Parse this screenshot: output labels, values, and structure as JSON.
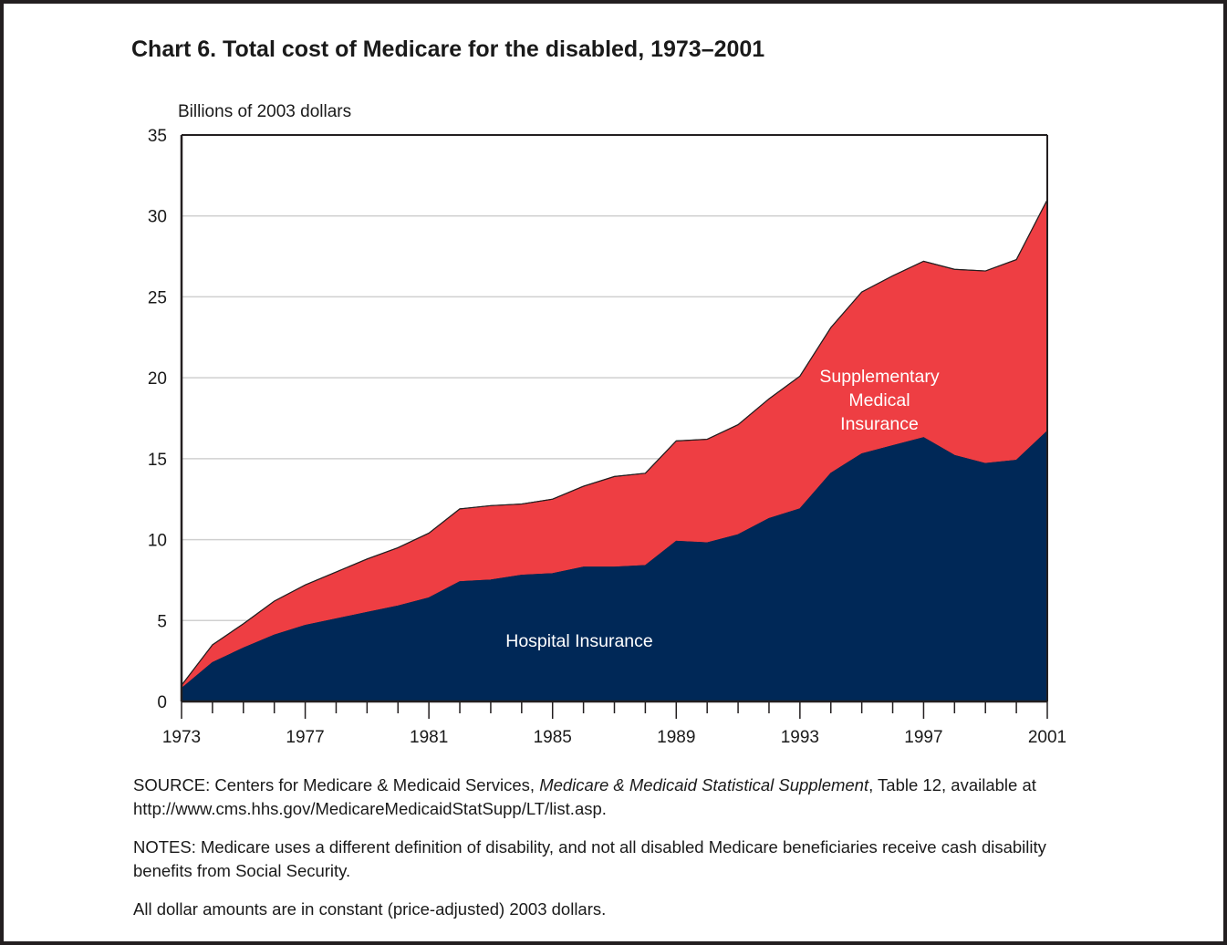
{
  "title": "Chart 6. Total cost of Medicare for the disabled, 1973–2001",
  "notes": {
    "source_prefix": "SOURCE:  Centers for Medicare & Medicaid Services, ",
    "source_italic": "Medicare & Medicaid Statistical Supplement",
    "source_suffix": ", Table 12, available at http://www.cms.hhs.gov/MedicareMedicaidStatSupp/LT/list.asp.",
    "notes_text": "NOTES:  Medicare uses a different definition of disability, and not all disabled Medicare beneficiaries receive cash disability benefits from Social Security.",
    "dollar_note": "All dollar amounts are in constant (price-adjusted) 2003 dollars."
  },
  "colors": {
    "hospital": "#002857",
    "supplementary": "#ee3e43",
    "grid": "#d0d0d0",
    "axis": "#231f20",
    "frame": "#231f20"
  },
  "chart_data": {
    "type": "area",
    "stacked": true,
    "title": "Chart 6. Total cost of Medicare for the disabled, 1973–2001",
    "ylabel": "Billions of 2003 dollars",
    "xlabel": "",
    "x": [
      1973,
      1974,
      1975,
      1976,
      1977,
      1978,
      1979,
      1980,
      1981,
      1982,
      1983,
      1984,
      1985,
      1986,
      1987,
      1988,
      1989,
      1990,
      1991,
      1992,
      1993,
      1994,
      1995,
      1996,
      1997,
      1998,
      1999,
      2000,
      2001
    ],
    "xticks": [
      1973,
      1977,
      1981,
      1985,
      1989,
      1993,
      1997,
      2001
    ],
    "yticks": [
      0,
      5,
      10,
      15,
      20,
      25,
      30,
      35
    ],
    "ylim": [
      0,
      35
    ],
    "xlim": [
      1973,
      2001
    ],
    "grid": true,
    "series": [
      {
        "name": "Hospital Insurance",
        "label_lines": [
          "Hospital Insurance"
        ],
        "values": [
          0.8,
          2.4,
          3.3,
          4.1,
          4.7,
          5.1,
          5.5,
          5.9,
          6.4,
          7.4,
          7.5,
          7.8,
          7.9,
          8.3,
          8.3,
          8.4,
          9.9,
          9.8,
          10.3,
          11.3,
          11.9,
          14.1,
          15.3,
          15.8,
          16.3,
          15.2,
          14.7,
          14.9,
          16.7
        ]
      },
      {
        "name": "Supplementary Medical Insurance",
        "label_lines": [
          "Supplementary",
          "Medical",
          "Insurance"
        ],
        "values": [
          0.2,
          1.1,
          1.5,
          2.1,
          2.5,
          2.9,
          3.3,
          3.6,
          4.0,
          4.5,
          4.6,
          4.4,
          4.6,
          5.0,
          5.6,
          5.7,
          6.2,
          6.4,
          6.8,
          7.4,
          8.2,
          9.0,
          10.0,
          10.5,
          10.9,
          11.5,
          11.9,
          12.4,
          14.3
        ]
      }
    ]
  }
}
